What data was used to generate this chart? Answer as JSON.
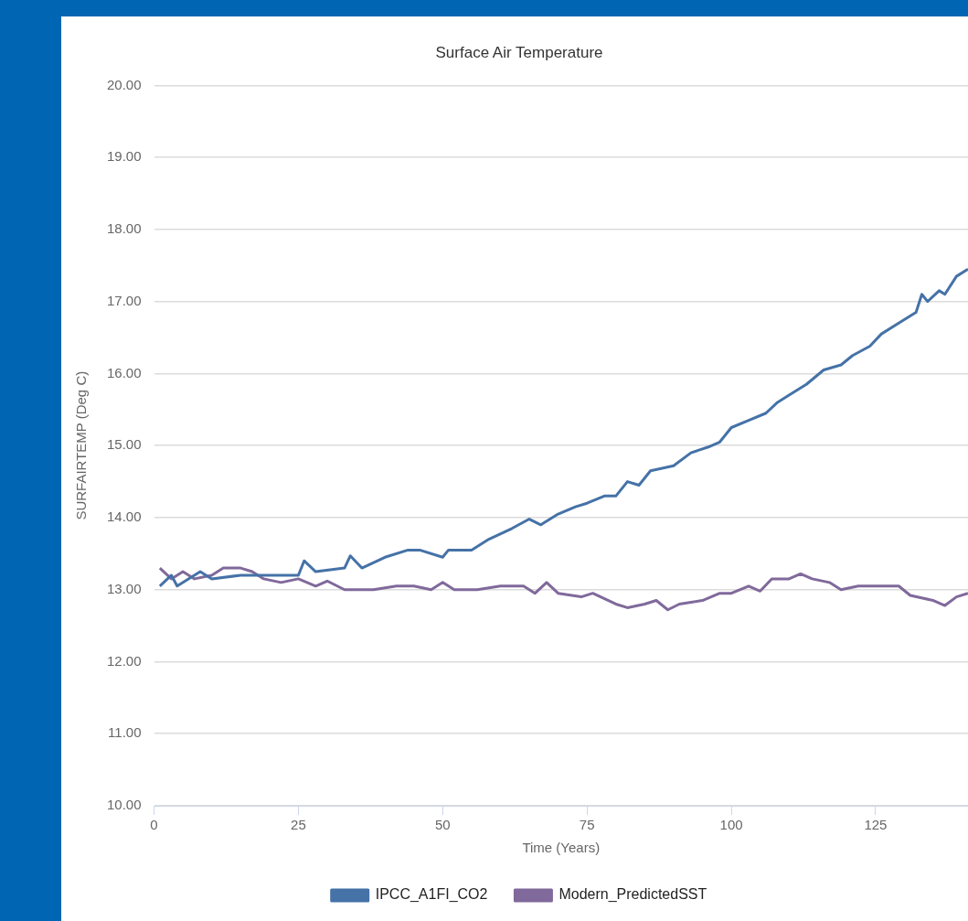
{
  "chart_data": {
    "type": "line",
    "title": "Surface Air Temperature",
    "xlabel": "Time (Years)",
    "ylabel": "SURFAIRTEMP (Deg C)",
    "xlim": [
      0,
      141
    ],
    "xticks": [
      0,
      25,
      50,
      75,
      100,
      125
    ],
    "ylim": [
      10,
      20
    ],
    "yticks": [
      {
        "value": 10,
        "label": "10.00"
      },
      {
        "value": 11,
        "label": "11.00"
      },
      {
        "value": 12,
        "label": "12.00"
      },
      {
        "value": 13,
        "label": "13.00"
      },
      {
        "value": 14,
        "label": "14.00"
      },
      {
        "value": 15,
        "label": "15.00"
      },
      {
        "value": 16,
        "label": "16.00"
      },
      {
        "value": 17,
        "label": "17.00"
      },
      {
        "value": 18,
        "label": "18.00"
      },
      {
        "value": 19,
        "label": "19.00"
      },
      {
        "value": 20,
        "label": "20.00"
      }
    ],
    "grid": "y",
    "legend": "bottom",
    "marker": "none",
    "line_style": "solid",
    "series": [
      {
        "name": "IPCC_A1FI_CO2",
        "color": "#4572a7",
        "x": [
          1,
          3,
          4,
          8,
          10,
          15,
          20,
          25,
          26,
          28,
          33,
          34,
          36,
          40,
          44,
          46,
          50,
          51,
          55,
          58,
          62,
          65,
          67,
          70,
          73,
          75,
          78,
          80,
          82,
          84,
          86,
          90,
          93,
          96,
          98,
          100,
          103,
          106,
          108,
          110,
          113,
          116,
          119,
          121,
          124,
          126,
          129,
          132,
          133,
          134,
          136,
          137,
          139,
          141
        ],
        "values": [
          13.05,
          13.2,
          13.05,
          13.25,
          13.15,
          13.2,
          13.2,
          13.2,
          13.4,
          13.25,
          13.3,
          13.47,
          13.3,
          13.45,
          13.55,
          13.55,
          13.45,
          13.55,
          13.55,
          13.7,
          13.85,
          13.98,
          13.9,
          14.05,
          14.15,
          14.2,
          14.3,
          14.3,
          14.5,
          14.45,
          14.65,
          14.72,
          14.9,
          14.98,
          15.05,
          15.25,
          15.35,
          15.45,
          15.6,
          15.7,
          15.85,
          16.05,
          16.12,
          16.25,
          16.38,
          16.55,
          16.7,
          16.85,
          17.1,
          17.0,
          17.15,
          17.1,
          17.35,
          17.45
        ]
      },
      {
        "name": "Modern_PredictedSST",
        "color": "#80699b",
        "x": [
          1,
          3,
          5,
          7,
          10,
          12,
          15,
          17,
          19,
          22,
          25,
          28,
          30,
          33,
          38,
          42,
          45,
          48,
          50,
          52,
          56,
          60,
          64,
          66,
          68,
          70,
          74,
          76,
          80,
          82,
          85,
          87,
          89,
          91,
          95,
          98,
          100,
          103,
          105,
          107,
          110,
          112,
          114,
          117,
          119,
          122,
          126,
          129,
          131,
          135,
          137,
          139,
          141
        ],
        "values": [
          13.3,
          13.15,
          13.25,
          13.15,
          13.2,
          13.3,
          13.3,
          13.25,
          13.15,
          13.1,
          13.15,
          13.05,
          13.12,
          13.0,
          13.0,
          13.05,
          13.05,
          13.0,
          13.1,
          13.0,
          13.0,
          13.05,
          13.05,
          12.95,
          13.1,
          12.95,
          12.9,
          12.95,
          12.8,
          12.75,
          12.8,
          12.85,
          12.72,
          12.8,
          12.85,
          12.95,
          12.95,
          13.05,
          12.98,
          13.15,
          13.15,
          13.22,
          13.15,
          13.1,
          13.0,
          13.05,
          13.05,
          13.05,
          12.92,
          12.85,
          12.78,
          12.9,
          12.95
        ]
      }
    ]
  }
}
